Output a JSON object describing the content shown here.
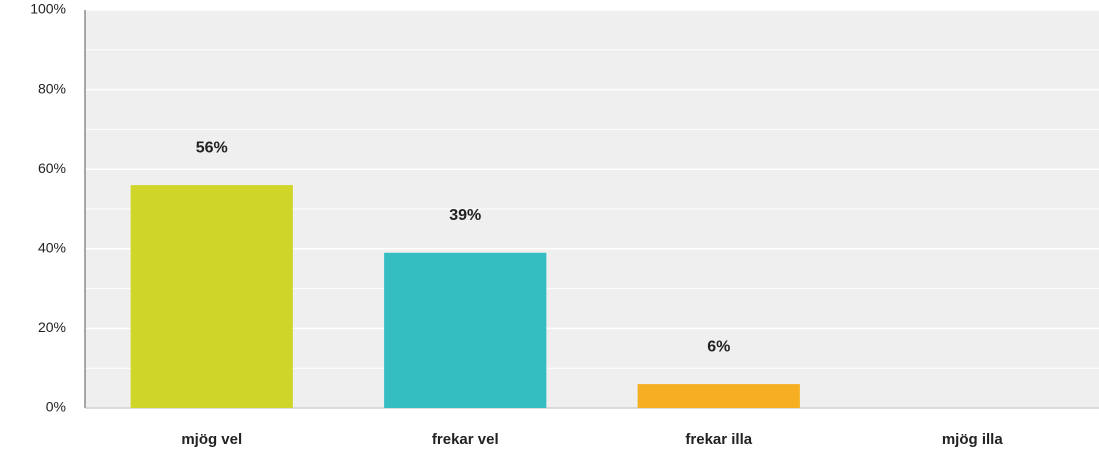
{
  "chart_data": {
    "type": "bar",
    "categories": [
      "mjög vel",
      "frekar vel",
      "frekar illa",
      "mjög illa"
    ],
    "values": [
      56,
      39,
      6,
      0
    ],
    "value_labels": [
      "56%",
      "39%",
      "6%",
      null
    ],
    "colors": [
      "#d0d52a",
      "#34bec1",
      "#f6ae22",
      "#cccccc"
    ],
    "ylim": [
      0,
      100
    ],
    "yticks": [
      {
        "value": 0,
        "label": "0%"
      },
      {
        "value": 20,
        "label": "20%"
      },
      {
        "value": 40,
        "label": "40%"
      },
      {
        "value": 60,
        "label": "60%"
      },
      {
        "value": 80,
        "label": "80%"
      },
      {
        "value": 100,
        "label": "100%"
      }
    ],
    "minor_yticks": [
      10,
      30,
      50,
      70,
      90
    ],
    "grid": true
  }
}
